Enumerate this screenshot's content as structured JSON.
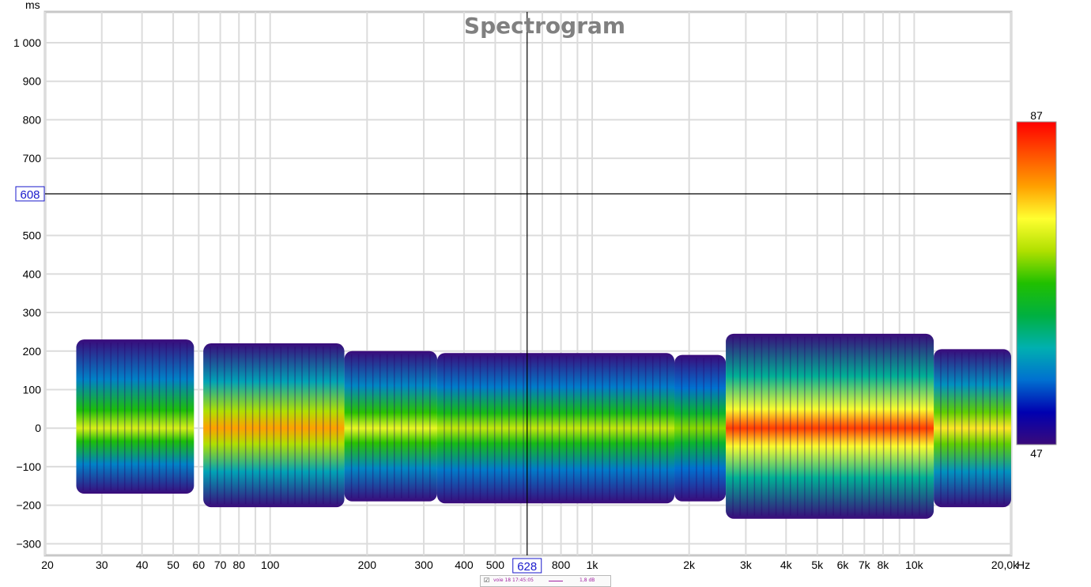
{
  "chart_data": {
    "type": "heatmap",
    "title": "Spectrogram",
    "xlabel": "Hz",
    "ylabel": "ms",
    "x_scale": "log",
    "xlim": [
      20,
      20000
    ],
    "ylim": [
      -330,
      1080
    ],
    "x_ticks": [
      {
        "value": 20,
        "label": "20"
      },
      {
        "value": 30,
        "label": "30"
      },
      {
        "value": 40,
        "label": "40"
      },
      {
        "value": 50,
        "label": "50"
      },
      {
        "value": 60,
        "label": "60"
      },
      {
        "value": 70,
        "label": "70"
      },
      {
        "value": 80,
        "label": "80"
      },
      {
        "value": 100,
        "label": "100"
      },
      {
        "value": 200,
        "label": "200"
      },
      {
        "value": 300,
        "label": "300"
      },
      {
        "value": 400,
        "label": "400"
      },
      {
        "value": 500,
        "label": "500"
      },
      {
        "value": 800,
        "label": "800"
      },
      {
        "value": 1000,
        "label": "1k"
      },
      {
        "value": 2000,
        "label": "2k"
      },
      {
        "value": 3000,
        "label": "3k"
      },
      {
        "value": 4000,
        "label": "4k"
      },
      {
        "value": 5000,
        "label": "5k"
      },
      {
        "value": 6000,
        "label": "6k"
      },
      {
        "value": 7000,
        "label": "7k"
      },
      {
        "value": 8000,
        "label": "8k"
      },
      {
        "value": 10000,
        "label": "10k"
      },
      {
        "value": 20000,
        "label": "20,0k"
      }
    ],
    "x_grid": [
      20,
      30,
      40,
      50,
      60,
      70,
      80,
      90,
      100,
      200,
      300,
      400,
      500,
      600,
      700,
      800,
      900,
      1000,
      2000,
      3000,
      4000,
      5000,
      6000,
      7000,
      8000,
      9000,
      10000,
      20000
    ],
    "y_ticks": [
      {
        "value": 1000,
        "label": "1 000"
      },
      {
        "value": 900,
        "label": "900"
      },
      {
        "value": 800,
        "label": "800"
      },
      {
        "value": 700,
        "label": "700"
      },
      {
        "value": 500,
        "label": "500"
      },
      {
        "value": 400,
        "label": "400"
      },
      {
        "value": 300,
        "label": "300"
      },
      {
        "value": 200,
        "label": "200"
      },
      {
        "value": 100,
        "label": "100"
      },
      {
        "value": 0,
        "label": "0"
      },
      {
        "value": -100,
        "label": "−100"
      },
      {
        "value": -200,
        "label": "−200"
      },
      {
        "value": -300,
        "label": "−300"
      }
    ],
    "cursor": {
      "x": 628,
      "x_label": "628",
      "y": 608,
      "y_label": "608"
    },
    "colorbar": {
      "min": 47,
      "max": 87,
      "min_label": "47",
      "max_label": "87",
      "colors": [
        "#3a0a7a",
        "#0000b0",
        "#0070d0",
        "#00b0b0",
        "#00b040",
        "#20c000",
        "#b0e000",
        "#ffff30",
        "#ffa000",
        "#ff5000",
        "#ff0000"
      ]
    },
    "band_regions": [
      {
        "f_start": 25,
        "f_end": 58,
        "t_top": 230,
        "t_bottom": -170,
        "peak_level": 73,
        "peak_freq": 30
      },
      {
        "f_start": 62,
        "f_end": 170,
        "t_top": 220,
        "t_bottom": -205,
        "peak_level": 79,
        "peak_freq": 100
      },
      {
        "f_start": 170,
        "f_end": 330,
        "t_top": 200,
        "t_bottom": -190,
        "peak_level": 74,
        "peak_freq": 195
      },
      {
        "f_start": 330,
        "f_end": 1800,
        "t_top": 195,
        "t_bottom": -195,
        "peak_level": 72,
        "peak_freq": 600
      },
      {
        "f_start": 1800,
        "f_end": 2600,
        "t_top": 190,
        "t_bottom": -190,
        "peak_level": 70,
        "peak_freq": 2100
      },
      {
        "f_start": 2600,
        "f_end": 11500,
        "t_top": 245,
        "t_bottom": -235,
        "peak_level": 84,
        "peak_freq": 4500
      },
      {
        "f_start": 11500,
        "f_end": 20000,
        "t_top": 205,
        "t_bottom": -205,
        "peak_level": 76,
        "peak_freq": 15000
      }
    ]
  },
  "legend": {
    "series_label": "voie 18 17:45:05",
    "value_label": "1,8 dB",
    "checked": true
  }
}
